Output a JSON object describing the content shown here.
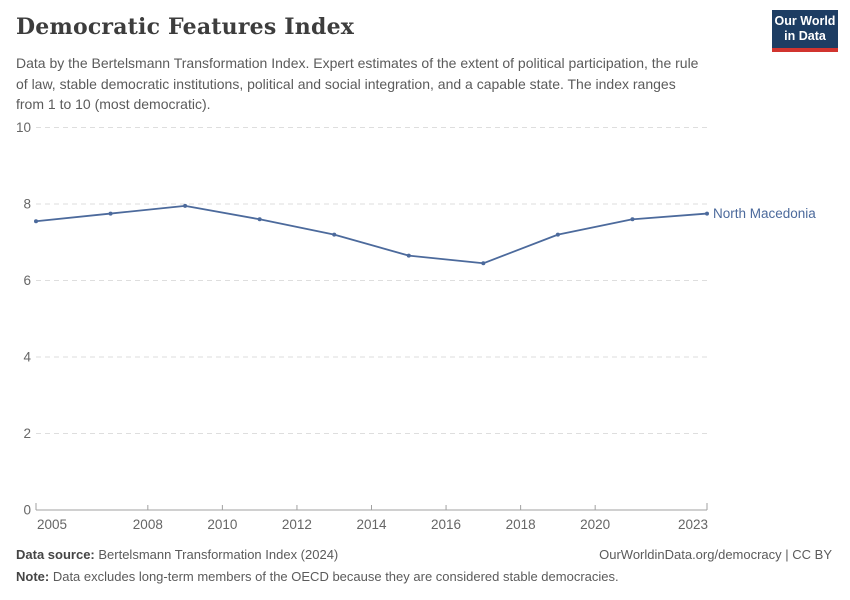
{
  "header": {
    "title": "Democratic Features Index",
    "subtitle": "Data by the Bertelsmann Transformation Index. Expert estimates of the extent of political participation, the rule\nof law, stable democratic institutions, political and social integration, and a capable state. The index ranges\nfrom 1 to 10 (most democratic).",
    "logo_line1": "Our World",
    "logo_line2": "in Data",
    "logo_bg_color": "#1d3d63",
    "logo_stripe_color": "#d1342f"
  },
  "chart_data": {
    "type": "line",
    "title": "Democratic Features Index",
    "x": [
      2005,
      2007,
      2009,
      2011,
      2013,
      2015,
      2017,
      2019,
      2021,
      2023
    ],
    "series": [
      {
        "name": "North Macedonia",
        "values": [
          7.55,
          7.75,
          7.95,
          7.6,
          7.2,
          6.65,
          6.45,
          7.2,
          7.6,
          7.75
        ]
      }
    ],
    "x_ticks": [
      2005,
      2008,
      2010,
      2012,
      2014,
      2016,
      2018,
      2020,
      2023
    ],
    "y_ticks": [
      0,
      2,
      4,
      6,
      8,
      10
    ],
    "xlim": [
      2005,
      2023
    ],
    "ylim": [
      0,
      10
    ],
    "grid": true,
    "legend_position": "end-of-line-label",
    "entity_label": "North Macedonia",
    "colors": {
      "line": "#4C6A9C",
      "grid": "#dedede",
      "axis": "#a1a1a1",
      "tick_label": "#666666"
    }
  },
  "footer": {
    "source_label": "Data source:",
    "source_text": " Bertelsmann Transformation Index (2024)",
    "credit": "OurWorldinData.org/democracy | CC BY",
    "note_label": "Note:",
    "note_text": " Data excludes long-term members of the OECD because they are considered stable democracies."
  }
}
